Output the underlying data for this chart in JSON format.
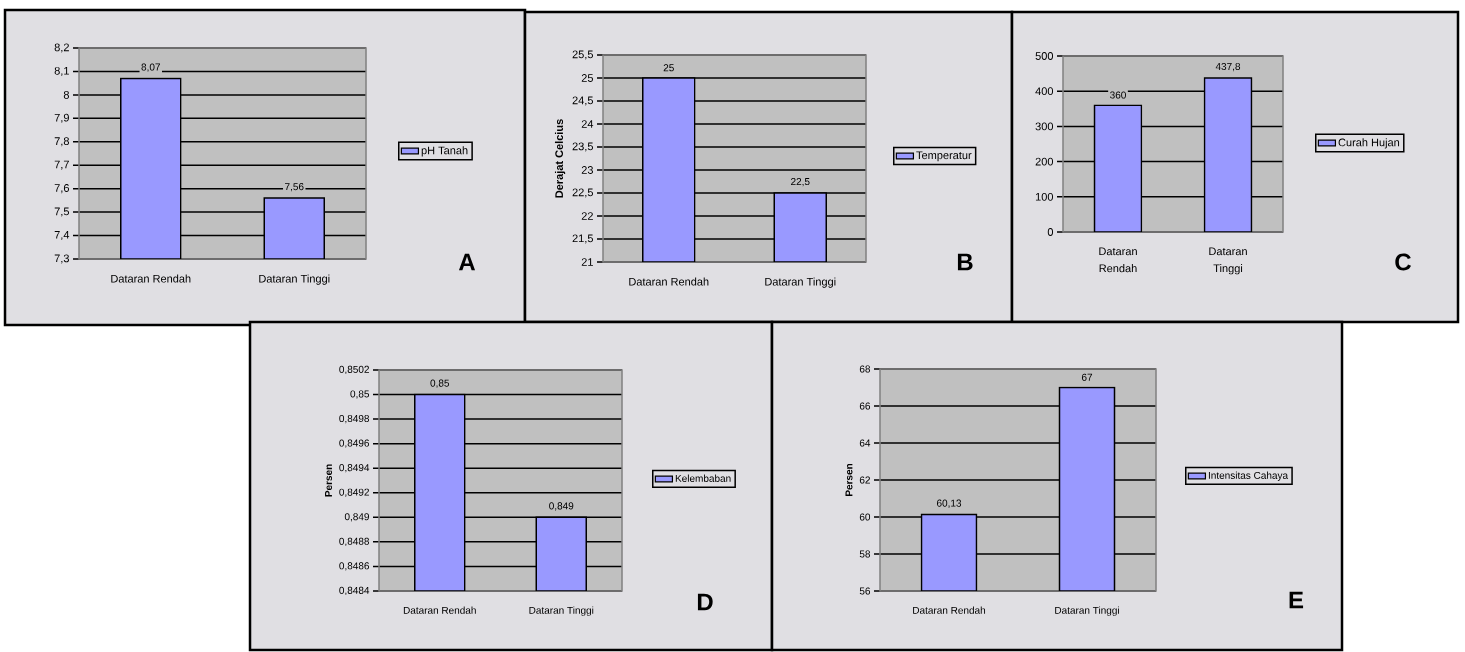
{
  "chart_data": [
    {
      "type": "bar",
      "categories": [
        "Dataran Rendah",
        "Dataran Tinggi"
      ],
      "series": [
        {
          "name": "pH Tanah",
          "color": "#9999ff",
          "values": [
            8.07,
            7.56
          ],
          "value_labels": [
            "8,07",
            "7,56"
          ]
        }
      ],
      "ylim": [
        7.3,
        8.2
      ],
      "yticks": [
        {
          "value": 7.3,
          "label": "7,3"
        },
        {
          "value": 7.4,
          "label": "7,4"
        },
        {
          "value": 7.5,
          "label": "7,5"
        },
        {
          "value": 7.6,
          "label": "7,6"
        },
        {
          "value": 7.7,
          "label": "7,7"
        },
        {
          "value": 7.8,
          "label": "7,8"
        },
        {
          "value": 7.9,
          "label": "7,9"
        },
        8,
        {
          "value": 8.1,
          "label": "8,1"
        },
        {
          "value": 8.2,
          "label": "8,2"
        }
      ],
      "grid": "y",
      "legend": "right",
      "annotations": [
        "A"
      ]
    },
    {
      "type": "bar",
      "categories": [
        "Dataran Rendah",
        "Dataran Tinggi"
      ],
      "ylabel": "Derajat Celcius",
      "series": [
        {
          "name": "Temperatur",
          "color": "#9999ff",
          "values": [
            25,
            22.5
          ],
          "value_labels": [
            "25",
            "22,5"
          ]
        }
      ],
      "ylim": [
        21,
        25.5
      ],
      "yticks": [
        21,
        {
          "value": 21.5,
          "label": "21,5"
        },
        22,
        {
          "value": 22.5,
          "label": "22,5"
        },
        23,
        {
          "value": 23.5,
          "label": "23,5"
        },
        24,
        {
          "value": 24.5,
          "label": "24,5"
        },
        25,
        {
          "value": 25.5,
          "label": "25,5"
        }
      ],
      "grid": "y",
      "legend": "right",
      "annotations": [
        "B"
      ]
    },
    {
      "type": "bar",
      "categories": [
        "Dataran Rendah",
        "Dataran Tinggi"
      ],
      "series": [
        {
          "name": "Curah Hujan",
          "color": "#9999ff",
          "values": [
            360,
            437.8
          ],
          "value_labels": [
            "360",
            "437,8"
          ]
        }
      ],
      "ylim": [
        0,
        500
      ],
      "yticks": [
        0,
        100,
        200,
        300,
        400,
        500
      ],
      "grid": "y",
      "legend": "right",
      "annotations": [
        "C"
      ]
    },
    {
      "type": "bar",
      "categories": [
        "Dataran Rendah",
        "Dataran Tinggi"
      ],
      "ylabel": "Persen",
      "series": [
        {
          "name": "Kelembaban",
          "color": "#9999ff",
          "values": [
            0.85,
            0.849
          ],
          "value_labels": [
            "0,85",
            "0,849"
          ]
        }
      ],
      "ylim": [
        0.8484,
        0.8502
      ],
      "yticks": [
        {
          "value": 0.8484,
          "label": "0,8484"
        },
        {
          "value": 0.8486,
          "label": "0,8486"
        },
        {
          "value": 0.8488,
          "label": "0,8488"
        },
        {
          "value": 0.849,
          "label": "0,849"
        },
        {
          "value": 0.8492,
          "label": "0,8492"
        },
        {
          "value": 0.8494,
          "label": "0,8494"
        },
        {
          "value": 0.8496,
          "label": "0,8496"
        },
        {
          "value": 0.8498,
          "label": "0,8498"
        },
        {
          "value": 0.85,
          "label": "0,85"
        },
        {
          "value": 0.8502,
          "label": "0,8502"
        }
      ],
      "grid": "y",
      "legend": "right",
      "annotations": [
        "D"
      ]
    },
    {
      "type": "bar",
      "categories": [
        "Dataran Rendah",
        "Dataran Tinggi"
      ],
      "ylabel": "Persen",
      "series": [
        {
          "name": "Intensitas Cahaya",
          "color": "#9999ff",
          "values": [
            60.13,
            67
          ],
          "value_labels": [
            "60,13",
            "67"
          ]
        }
      ],
      "ylim": [
        56,
        68
      ],
      "yticks": [
        56,
        58,
        60,
        62,
        64,
        66,
        68
      ],
      "grid": "y",
      "legend": "right",
      "annotations": [
        "E"
      ]
    }
  ]
}
